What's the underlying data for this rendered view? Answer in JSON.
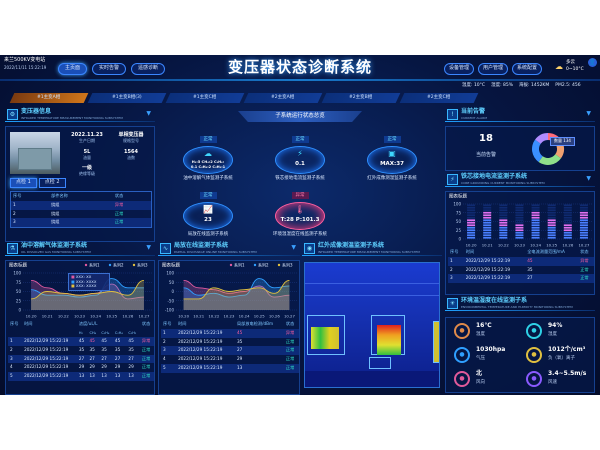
{
  "header": {
    "station": "来兰500KV变电站",
    "datetime": "2022/11/11 15:22:19",
    "title": "变压器状态诊断系统",
    "nav_left": [
      "主页面",
      "实时告警",
      "遥感诊断"
    ],
    "nav_right": [
      "设备管理",
      "用户管理",
      "系统配置"
    ],
    "weather": {
      "icon": "cloudy-icon",
      "desc": "多云",
      "range": "0~10°C"
    },
    "stats": [
      "温度: 10°C",
      "湿度: 85%",
      "海拔: 1452KM",
      "PM2.5: 456"
    ],
    "avatar_icon": "user-icon"
  },
  "phase_tabs": [
    "#1主变A相",
    "#1主变B相(3)",
    "#1主变C相",
    "#2主变A相",
    "#2主变B相",
    "#2主变C相"
  ],
  "transformer": {
    "title": "变压器信息",
    "subtitle": "INFRARED TEMPERATURE MEASUREMENT MONITORING SUBSYSTEM",
    "fields": [
      {
        "value": "2022.11.23",
        "label": "生产日期"
      },
      {
        "value": "单相变压器",
        "label": "规格型号"
      },
      {
        "value": "5L",
        "label": "油量"
      },
      {
        "value": "1564",
        "label": "油数"
      },
      {
        "value": "一级",
        "label": "绝缘等级"
      }
    ],
    "tabs": [
      "点检 1",
      "点检 2"
    ],
    "columns": [
      "序号",
      "部件名称",
      "状态"
    ],
    "rows": [
      [
        "1",
        "绕组",
        "异常"
      ],
      [
        "2",
        "绕组",
        "正常"
      ],
      [
        "3",
        "绕组",
        "正常"
      ]
    ]
  },
  "overview": {
    "title": "子系统运行状态总览",
    "nodes": [
      {
        "status": "正常",
        "value": "H₂:5 CH₄:2 C₂H₆:",
        "value2": "0.1 C₂H₄:2 C₂H₂:1",
        "name": "油中溶解气体监测子系统",
        "icon": "gas-icon"
      },
      {
        "status": "正常",
        "value": "0.1",
        "name": "铁芯接地电流监测子系统",
        "icon": "lightning-icon"
      },
      {
        "status": "正常",
        "value": "MAX:37",
        "name": "红外成像测温监测子系统",
        "icon": "camera-icon"
      },
      {
        "status": "正常",
        "value": "23",
        "name": "局放在线监测子系统",
        "icon": "wave-chart-icon"
      },
      {
        "status": "异常",
        "value": "T:28 P:101.3",
        "name": "环境温湿度在线监测子系统",
        "icon": "thermometer-icon"
      }
    ]
  },
  "alarm": {
    "title": "当前告警",
    "subtitle": "CURRENT ALARM",
    "count": "18",
    "label": "当前告警",
    "tooltip": "数量 134",
    "slices": [
      {
        "value": 20,
        "color": "#ff6b7a"
      },
      {
        "value": 15,
        "color": "#f0a070"
      },
      {
        "value": 25,
        "color": "#8fe08a"
      },
      {
        "value": 25,
        "color": "#3a8fff"
      },
      {
        "value": 15,
        "color": "#b08cff"
      }
    ]
  },
  "core": {
    "title": "铁芯接地电流监测子系统",
    "subtitle": "CORE GROUNDING CURRENT MONITORING SUBSYSTEM",
    "columns": [
      "序号",
      "时间",
      "全电流测量范围/mA",
      "状态"
    ],
    "rows": [
      [
        "1",
        "2022/12/29 15:22:19",
        "45",
        "异常"
      ],
      [
        "2",
        "2022/12/29 15:22:19",
        "35",
        "正常"
      ],
      [
        "3",
        "2022/12/29 15:22:19",
        "27",
        "正常"
      ]
    ]
  },
  "gas": {
    "title": "油中溶解气体监测子系统",
    "subtitle": "OIL DISSOLVED GAS MONITORING SUBSYSTEM",
    "tooltip": [
      "XXX: XX",
      "XXX: XXXX",
      "XXX: XXXX"
    ],
    "columns": [
      "序号",
      "时间",
      "浓度/uL/L",
      "状态"
    ],
    "subcolumns": [
      "H₂",
      "CH₄",
      "C₂H₆",
      "C₂H₄",
      "C₂H₂"
    ],
    "rows": [
      [
        "1",
        "2022/12/29 15:22:19",
        "45",
        "45",
        "45",
        "45",
        "45",
        "异常"
      ],
      [
        "2",
        "2022/12/29 15:22:19",
        "35",
        "35",
        "35",
        "35",
        "35",
        "正常"
      ],
      [
        "3",
        "2022/12/29 15:22:19",
        "27",
        "27",
        "27",
        "27",
        "27",
        "正常"
      ],
      [
        "4",
        "2022/12/29 15:22:19",
        "29",
        "29",
        "29",
        "29",
        "29",
        "正常"
      ],
      [
        "5",
        "2022/12/29 15:22:19",
        "13",
        "13",
        "13",
        "13",
        "13",
        "正常"
      ]
    ]
  },
  "pd": {
    "title": "局放在线监测子系统",
    "subtitle": "PARTIAL DISCHARGE ONLINE MONITORING SUBSYSTEM",
    "columns": [
      "序号",
      "时间",
      "局部放电检测/dBm",
      "状态"
    ],
    "rows": [
      [
        "1",
        "2022/12/29 15:22:19",
        "45",
        "异常"
      ],
      [
        "2",
        "2022/12/29 15:22:19",
        "35",
        "正常"
      ],
      [
        "3",
        "2022/12/29 15:22:19",
        "27",
        "正常"
      ],
      [
        "4",
        "2022/12/29 15:22:19",
        "29",
        "正常"
      ],
      [
        "5",
        "2022/12/29 15:22:19",
        "13",
        "正常"
      ]
    ]
  },
  "ir": {
    "title": "红外成像测温监测子系统",
    "subtitle": "INFRARED TEMPERATURE MEASUREMENT MONITORING SUBSYSTEM"
  },
  "env": {
    "title": "环境温湿度在线监测子系",
    "subtitle": "ENVIRONMENTAL TEMPERATURE AND HUMIDITY MONITORING SUBSYSTEM",
    "items": [
      {
        "value": "16℃",
        "label": "温度",
        "color": "#e08a4a"
      },
      {
        "value": "94%",
        "label": "湿度",
        "color": "#2fd0e6"
      },
      {
        "value": "1030hpa",
        "label": "气压",
        "color": "#2f9fff"
      },
      {
        "value": "1012个/cm³",
        "label": "负（氧）离子",
        "color": "#e0c040"
      },
      {
        "value": "北",
        "label": "风向",
        "color": "#e05a9a"
      },
      {
        "value": "3.4~5.5m/s",
        "label": "风速",
        "color": "#8a5aff"
      }
    ]
  },
  "chart_data": [
    {
      "type": "area",
      "title": "图表标题",
      "categories": [
        "10.20",
        "10.21",
        "10.22",
        "10.23",
        "10.24",
        "10.25",
        "10.26",
        "10.27"
      ],
      "ylim": [
        0,
        100
      ],
      "yticks": [
        0,
        25,
        50,
        75,
        100
      ],
      "series": [
        {
          "name": "系列1",
          "color": "#e05aa0",
          "values": [
            80,
            60,
            45,
            40,
            45,
            70,
            30,
            35
          ]
        },
        {
          "name": "系列2",
          "color": "#2f9fff",
          "values": [
            55,
            40,
            40,
            35,
            40,
            85,
            60,
            60
          ]
        },
        {
          "name": "系列3",
          "color": "#e0c040",
          "values": [
            30,
            50,
            45,
            40,
            45,
            50,
            40,
            80
          ]
        }
      ]
    },
    {
      "type": "area",
      "title": "图表标题",
      "categories": [
        "10.20",
        "10.21",
        "10.22",
        "10.23",
        "10.24",
        "10.25",
        "10.26",
        "10.27"
      ],
      "ylim": [
        -100,
        100
      ],
      "yticks": [
        -100,
        -50,
        0,
        50,
        100
      ],
      "series": [
        {
          "name": "系列1",
          "color": "#e05aa0",
          "values": [
            60,
            20,
            10,
            -10,
            0,
            30,
            -30,
            -20
          ]
        },
        {
          "name": "系列2",
          "color": "#2f9fff",
          "values": [
            20,
            -20,
            -10,
            -30,
            -20,
            70,
            20,
            30
          ]
        },
        {
          "name": "系列3",
          "color": "#e0c040",
          "values": [
            -40,
            -40,
            20,
            0,
            10,
            20,
            -10,
            60
          ]
        }
      ]
    },
    {
      "type": "bar",
      "title": "图表标题",
      "categories": [
        "10.20",
        "10.21",
        "10.22",
        "10.23",
        "10.24",
        "10.25",
        "10.26",
        "10.27"
      ],
      "ylim": [
        0,
        100
      ],
      "yticks": [
        0,
        25,
        50,
        75,
        100
      ],
      "values": [
        55,
        80,
        58,
        42,
        80,
        58,
        42,
        80
      ]
    }
  ]
}
